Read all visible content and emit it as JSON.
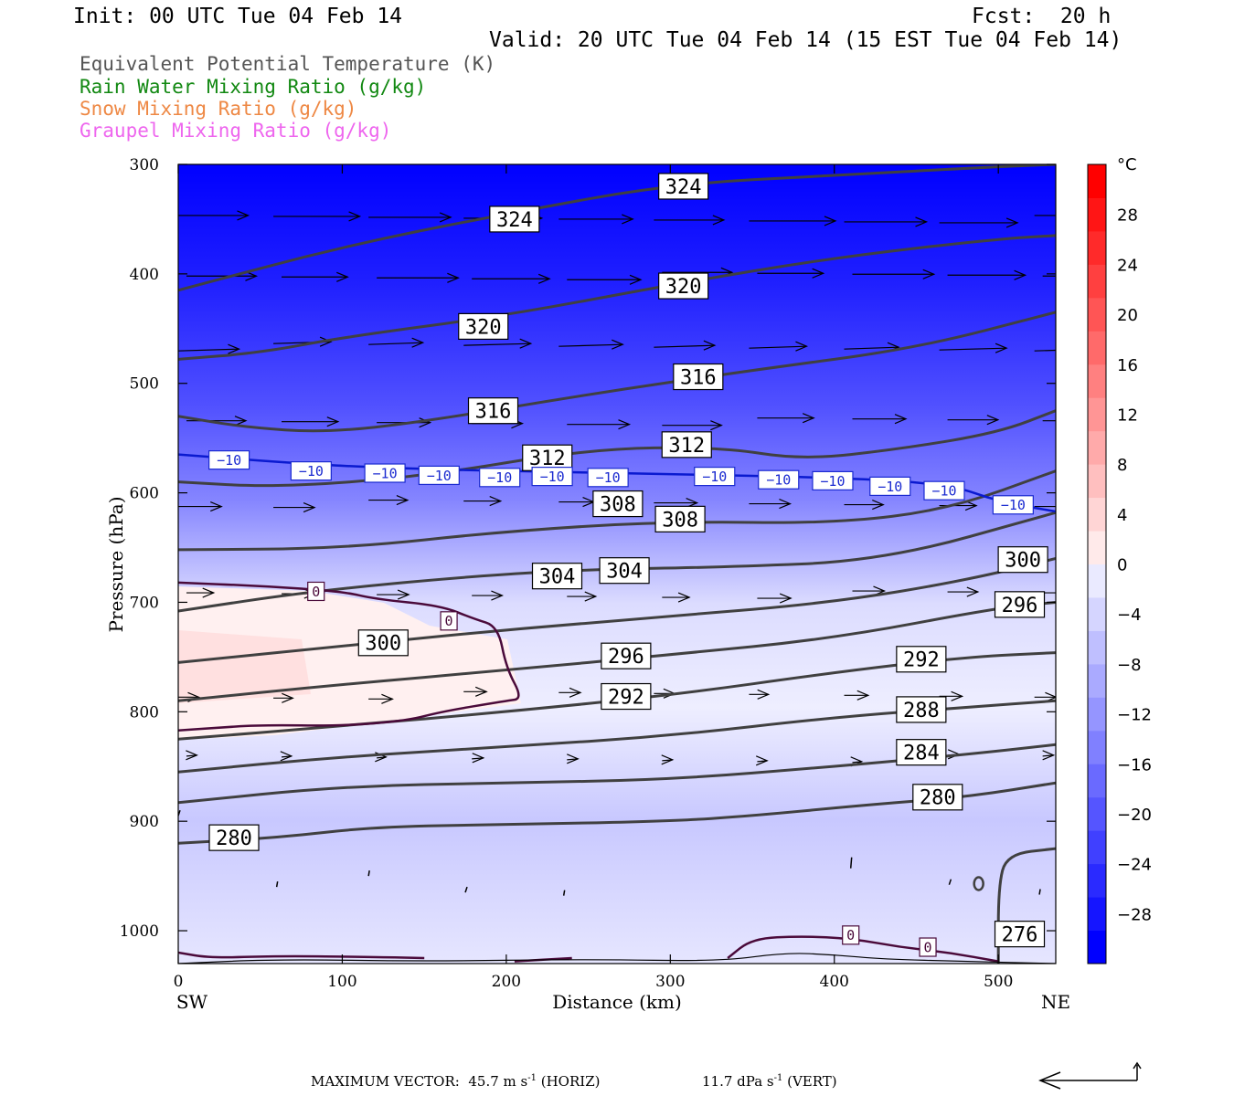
{
  "header": {
    "init": "Init: 00 UTC Tue 04 Feb 14",
    "fcst": "Fcst:  20 h",
    "valid": "Valid: 20 UTC Tue 04 Feb 14 (15 EST Tue 04 Feb 14)"
  },
  "legend": [
    {
      "label": "Equivalent Potential Temperature (K)",
      "color": "#555555"
    },
    {
      "label": "Rain Water Mixing Ratio (g/kg)",
      "color": "#118811"
    },
    {
      "label": "Snow Mixing Ratio (g/kg)",
      "color": "#ee8844"
    },
    {
      "label": "Graupel Mixing Ratio (g/kg)",
      "color": "#ee66ee"
    }
  ],
  "chart_data": {
    "type": "contour cross-section",
    "xlabel": "Distance (km)",
    "ylabel": "Pressure (hPa)",
    "x_range": [
      0,
      535
    ],
    "y_range": [
      1030,
      300
    ],
    "x_ticks": [
      0,
      100,
      200,
      300,
      400,
      500
    ],
    "y_ticks": [
      300,
      400,
      500,
      600,
      700,
      800,
      900,
      1000
    ],
    "left_endpoint": "SW",
    "right_endpoint": "NE",
    "colorbar": {
      "unit": "°C",
      "labels": [
        28,
        24,
        20,
        16,
        12,
        8,
        4,
        0,
        -4,
        -8,
        -12,
        -16,
        -20,
        -24,
        -28
      ],
      "range": [
        -32,
        32
      ],
      "colors": [
        "#0000ff",
        "#1515ff",
        "#2a2aff",
        "#4040ff",
        "#5555ff",
        "#6a6aff",
        "#8080ff",
        "#9595ff",
        "#aaaaff",
        "#bfbfff",
        "#d5d5ff",
        "#eaeaff",
        "#ffeaea",
        "#ffd5d5",
        "#ffbfbf",
        "#ffaaaa",
        "#ff9595",
        "#ff8080",
        "#ff6a6a",
        "#ff5555",
        "#ff4040",
        "#ff2a2a",
        "#ff1515",
        "#ff0000"
      ]
    },
    "theta_e_contours": [
      {
        "value": 324,
        "points": [
          [
            0,
            415
          ],
          [
            100,
            375
          ],
          [
            200,
            345
          ],
          [
            300,
            318
          ],
          [
            400,
            310
          ],
          [
            500,
            302
          ],
          [
            535,
            300
          ]
        ],
        "labels": [
          [
            205,
            350
          ],
          [
            308,
            320
          ]
        ]
      },
      {
        "value": 320,
        "points": [
          [
            0,
            478
          ],
          [
            50,
            472
          ],
          [
            100,
            458
          ],
          [
            200,
            438
          ],
          [
            300,
            410
          ],
          [
            400,
            385
          ],
          [
            500,
            368
          ],
          [
            535,
            365
          ]
        ],
        "labels": [
          [
            186,
            448
          ],
          [
            308,
            411
          ]
        ]
      },
      {
        "value": 316,
        "points": [
          [
            0,
            530
          ],
          [
            40,
            540
          ],
          [
            90,
            545
          ],
          [
            150,
            535
          ],
          [
            250,
            510
          ],
          [
            350,
            488
          ],
          [
            450,
            468
          ],
          [
            535,
            435
          ]
        ],
        "labels": [
          [
            192,
            525
          ],
          [
            317,
            494
          ]
        ]
      },
      {
        "value": 312,
        "points": [
          [
            0,
            590
          ],
          [
            60,
            595
          ],
          [
            150,
            585
          ],
          [
            250,
            560
          ],
          [
            330,
            558
          ],
          [
            380,
            570
          ],
          [
            440,
            560
          ],
          [
            500,
            545
          ],
          [
            535,
            525
          ]
        ],
        "labels": [
          [
            225,
            568
          ],
          [
            310,
            556
          ]
        ]
      },
      {
        "value": 308,
        "points": [
          [
            0,
            652
          ],
          [
            100,
            651
          ],
          [
            200,
            635
          ],
          [
            300,
            626
          ],
          [
            400,
            628
          ],
          [
            470,
            615
          ],
          [
            535,
            580
          ]
        ],
        "labels": [
          [
            268,
            610
          ],
          [
            306,
            624
          ]
        ]
      },
      {
        "value": 304,
        "points": [
          [
            0,
            708
          ],
          [
            80,
            690
          ],
          [
            180,
            676
          ],
          [
            250,
            670
          ],
          [
            330,
            668
          ],
          [
            430,
            662
          ],
          [
            535,
            618
          ]
        ],
        "labels": [
          [
            231,
            676
          ],
          [
            272,
            671
          ]
        ]
      },
      {
        "value": 300,
        "points": [
          [
            0,
            755
          ],
          [
            100,
            740
          ],
          [
            200,
            725
          ],
          [
            300,
            713
          ],
          [
            400,
            700
          ],
          [
            480,
            680
          ],
          [
            535,
            660
          ]
        ],
        "labels": [
          [
            125,
            737
          ],
          [
            515,
            661
          ]
        ]
      },
      {
        "value": 296,
        "points": [
          [
            0,
            790
          ],
          [
            100,
            775
          ],
          [
            200,
            762
          ],
          [
            300,
            748
          ],
          [
            400,
            733
          ],
          [
            500,
            705
          ],
          [
            535,
            700
          ]
        ],
        "labels": [
          [
            273,
            749
          ],
          [
            513,
            702
          ]
        ]
      },
      {
        "value": 292,
        "points": [
          [
            0,
            825
          ],
          [
            100,
            813
          ],
          [
            200,
            800
          ],
          [
            300,
            785
          ],
          [
            400,
            764
          ],
          [
            480,
            750
          ],
          [
            535,
            746
          ]
        ],
        "labels": [
          [
            273,
            786
          ],
          [
            453,
            752
          ]
        ]
      },
      {
        "value": 288,
        "points": [
          [
            0,
            855
          ],
          [
            100,
            841
          ],
          [
            200,
            832
          ],
          [
            300,
            822
          ],
          [
            400,
            805
          ],
          [
            480,
            796
          ],
          [
            535,
            790
          ]
        ],
        "labels": [
          [
            453,
            798
          ]
        ]
      },
      {
        "value": 284,
        "points": [
          [
            0,
            883
          ],
          [
            100,
            868
          ],
          [
            200,
            865
          ],
          [
            300,
            862
          ],
          [
            400,
            850
          ],
          [
            480,
            839
          ],
          [
            535,
            830
          ]
        ],
        "labels": [
          [
            453,
            837
          ]
        ]
      },
      {
        "value": 280,
        "points": [
          [
            0,
            920
          ],
          [
            60,
            915
          ],
          [
            120,
            905
          ],
          [
            200,
            903
          ],
          [
            300,
            900
          ],
          [
            350,
            895
          ],
          [
            420,
            885
          ],
          [
            480,
            878
          ],
          [
            535,
            865
          ]
        ],
        "labels": [
          [
            34,
            915
          ],
          [
            463,
            878
          ]
        ]
      },
      {
        "value": 276,
        "points": [
          [
            500,
            1030
          ],
          [
            500,
            960
          ],
          [
            505,
            930
          ],
          [
            535,
            925
          ]
        ],
        "labels": [
          [
            513,
            1003
          ]
        ]
      }
    ],
    "isotherm_minus10": {
      "value": -10,
      "points": [
        [
          0,
          565
        ],
        [
          80,
          574
        ],
        [
          140,
          578
        ],
        [
          200,
          580
        ],
        [
          300,
          583
        ],
        [
          400,
          586
        ],
        [
          470,
          592
        ],
        [
          500,
          608
        ],
        [
          535,
          617
        ]
      ],
      "labels": [
        [
          31,
          570
        ],
        [
          81,
          580
        ],
        [
          126,
          582
        ],
        [
          159,
          584
        ],
        [
          196,
          586
        ],
        [
          228,
          585
        ],
        [
          262,
          586
        ],
        [
          327,
          585
        ],
        [
          366,
          588
        ],
        [
          399,
          589
        ],
        [
          434,
          594
        ],
        [
          467,
          598
        ],
        [
          509,
          611
        ]
      ]
    },
    "isotherm_zero": {
      "value": 0,
      "segments": [
        [
          [
            0,
            682
          ],
          [
            50,
            685
          ],
          [
            100,
            690
          ],
          [
            120,
            697
          ],
          [
            160,
            703
          ],
          [
            180,
            715
          ],
          [
            195,
            722
          ],
          [
            200,
            760
          ],
          [
            210,
            788
          ],
          [
            200,
            790
          ],
          [
            160,
            800
          ],
          [
            140,
            808
          ],
          [
            100,
            813
          ],
          [
            50,
            812
          ],
          [
            20,
            815
          ],
          [
            0,
            817
          ]
        ],
        [
          [
            0,
            1020
          ],
          [
            20,
            1025
          ],
          [
            60,
            1023
          ],
          [
            120,
            1024
          ],
          [
            150,
            1025
          ]
        ],
        [
          [
            205,
            1028
          ],
          [
            240,
            1025
          ]
        ],
        [
          [
            335,
            1025
          ],
          [
            350,
            1007
          ],
          [
            380,
            1005
          ],
          [
            410,
            1007
          ],
          [
            440,
            1015
          ],
          [
            470,
            1020
          ],
          [
            500,
            1028
          ]
        ]
      ],
      "labels": [
        [
          84,
          690
        ],
        [
          165,
          717
        ],
        [
          410,
          1004
        ],
        [
          457,
          1015
        ]
      ]
    }
  },
  "footer": {
    "max_vector": "MAXIMUM VECTOR:  45.7 m s",
    "horiz": " (HORIZ)",
    "vert_val": "11.7 dPa s",
    "vert": " (VERT)",
    "exp": "-1"
  }
}
